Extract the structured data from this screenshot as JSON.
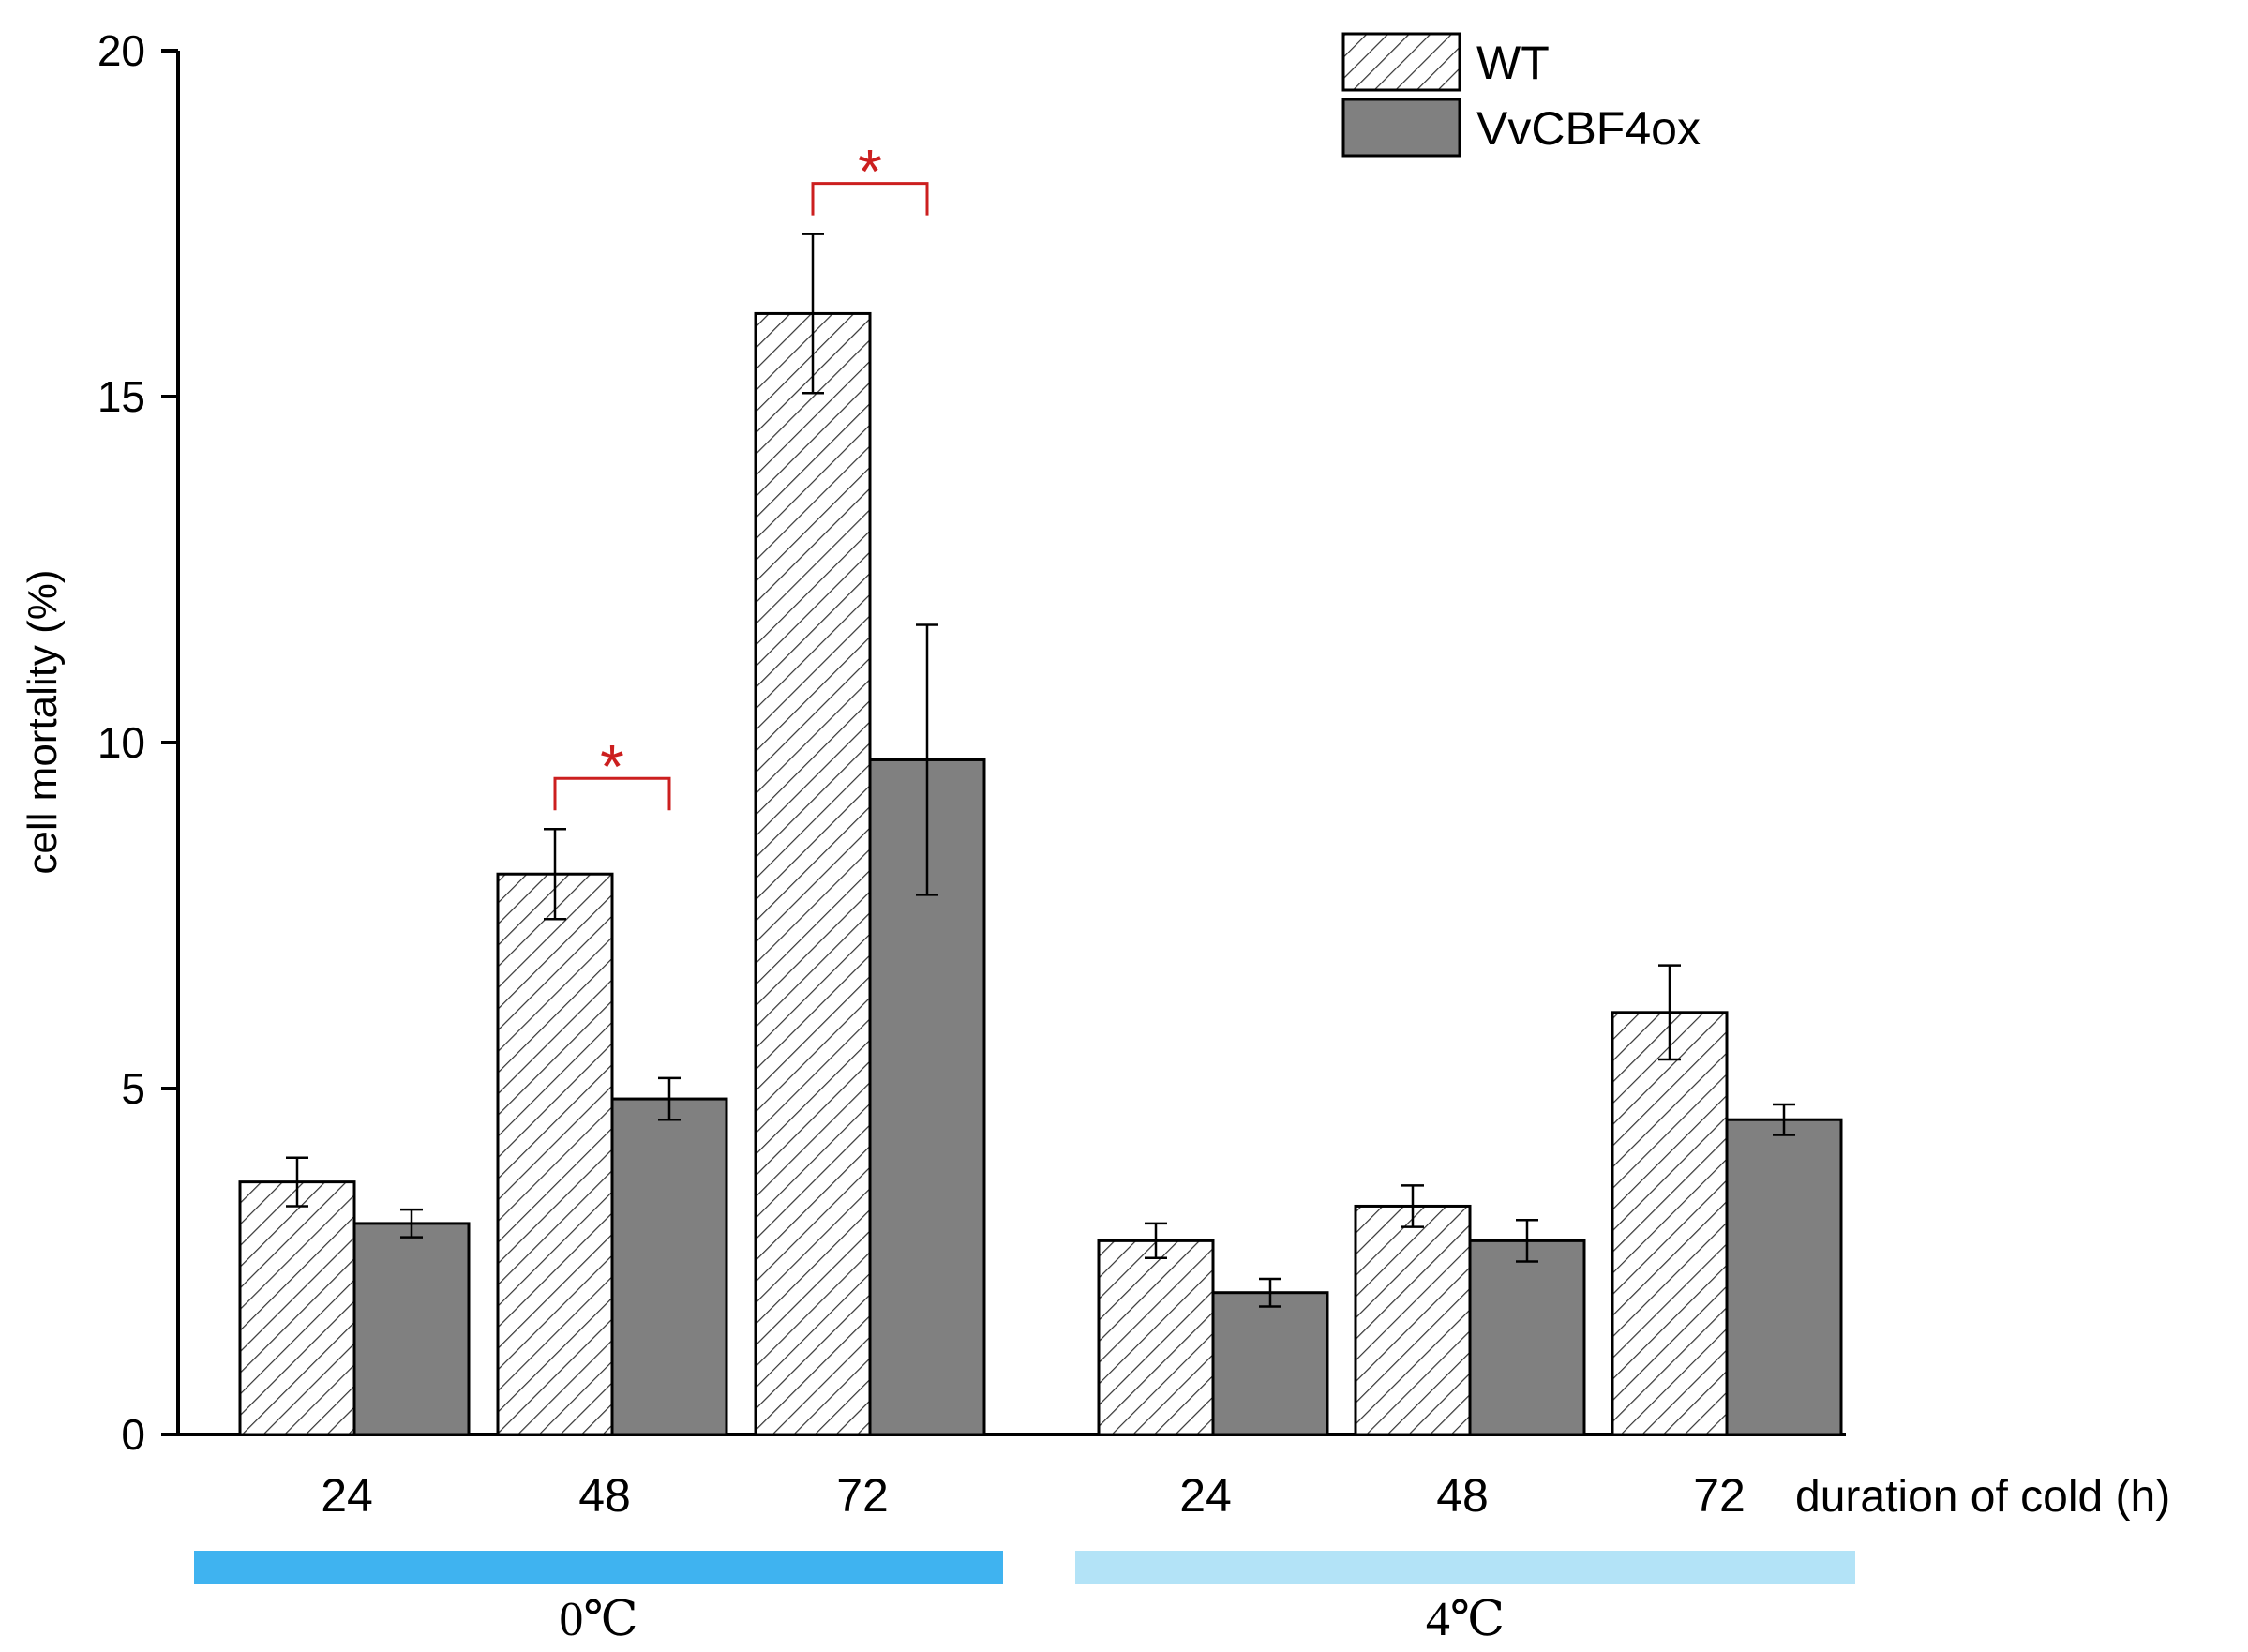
{
  "chart_data": {
    "type": "bar",
    "title": "",
    "ylabel": "cell mortality (%)",
    "xlabel": "duration of cold (h)",
    "ylim": [
      0,
      20
    ],
    "yticks": [
      0,
      5,
      10,
      15,
      20
    ],
    "categories": [
      "24",
      "48",
      "72",
      "24",
      "48",
      "72"
    ],
    "conditions": [
      {
        "label": "0℃",
        "color": "#3fb3f0",
        "categories": [
          0,
          1,
          2
        ]
      },
      {
        "label": "4℃",
        "color": "#b3e3f7",
        "categories": [
          3,
          4,
          5
        ]
      }
    ],
    "series": [
      {
        "name": "WT",
        "pattern": "hatch",
        "color": "#ffffff",
        "values": [
          3.65,
          8.1,
          16.2,
          2.8,
          3.3,
          6.1
        ],
        "errors": [
          0.35,
          0.65,
          1.15,
          0.25,
          0.3,
          0.68
        ]
      },
      {
        "name": "VvCBF4ox",
        "pattern": "solid",
        "color": "#808080",
        "values": [
          3.05,
          4.85,
          9.75,
          2.05,
          2.8,
          4.55
        ],
        "errors": [
          0.2,
          0.3,
          1.95,
          0.2,
          0.3,
          0.22
        ]
      }
    ],
    "significance": [
      {
        "category": 1,
        "label": "*",
        "color": "#cc1f1f"
      },
      {
        "category": 2,
        "label": "*",
        "color": "#cc1f1f"
      }
    ],
    "legend": {
      "position": "top-right",
      "entries": [
        "WT",
        "VvCBF4ox"
      ]
    }
  }
}
